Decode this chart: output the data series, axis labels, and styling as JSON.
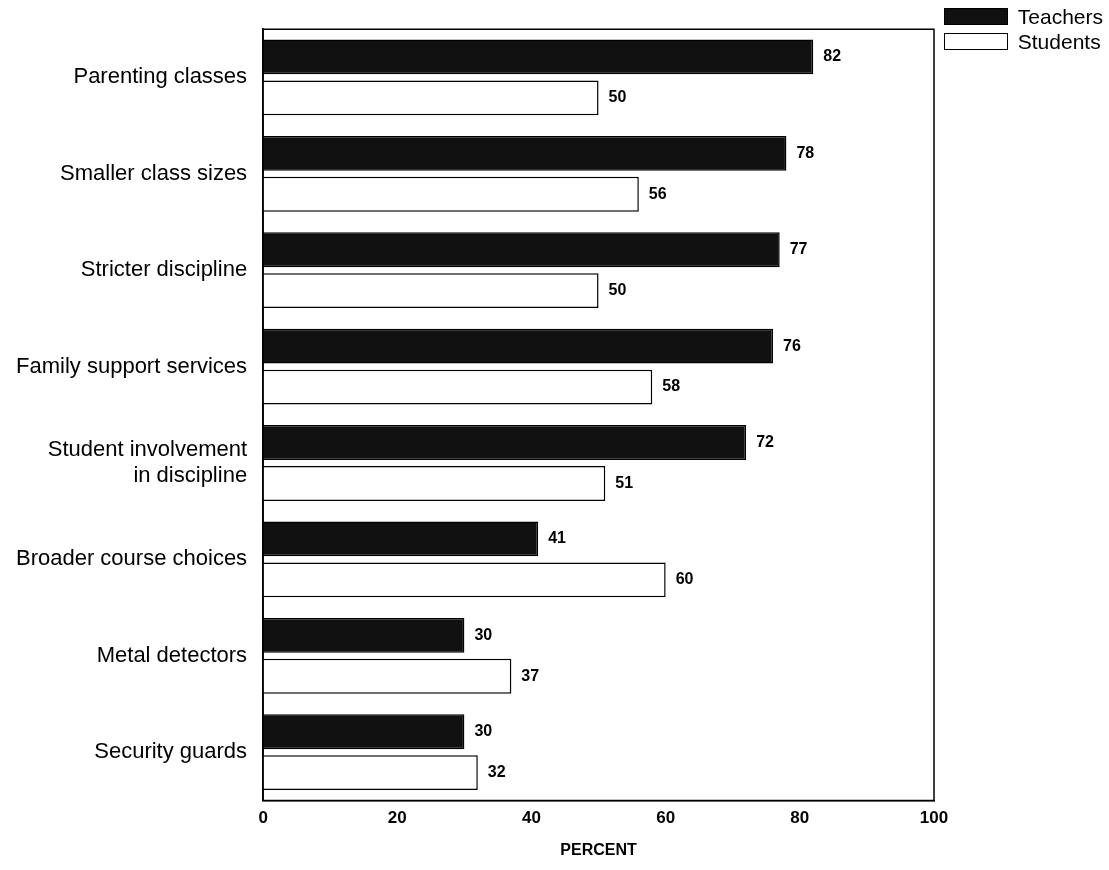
{
  "chart_data": {
    "type": "bar",
    "orientation": "horizontal",
    "xlabel": "PERCENT",
    "categories": [
      "Parenting classes",
      "Smaller class sizes",
      "Stricter discipline",
      "Family support services",
      "Student involvement in discipline",
      "Broader course choices",
      "Metal detectors",
      "Security guards"
    ],
    "series": [
      {
        "name": "Teachers",
        "color": "#111111",
        "values": [
          82,
          78,
          77,
          76,
          72,
          41,
          30,
          30
        ]
      },
      {
        "name": "Students",
        "color": "#ffffff",
        "values": [
          50,
          56,
          50,
          58,
          51,
          60,
          37,
          32
        ]
      }
    ],
    "xlim": [
      0,
      100
    ],
    "xticks": [
      0,
      20,
      40,
      60,
      80,
      100
    ],
    "grid": false,
    "legend": "top right",
    "data_labels": true
  }
}
